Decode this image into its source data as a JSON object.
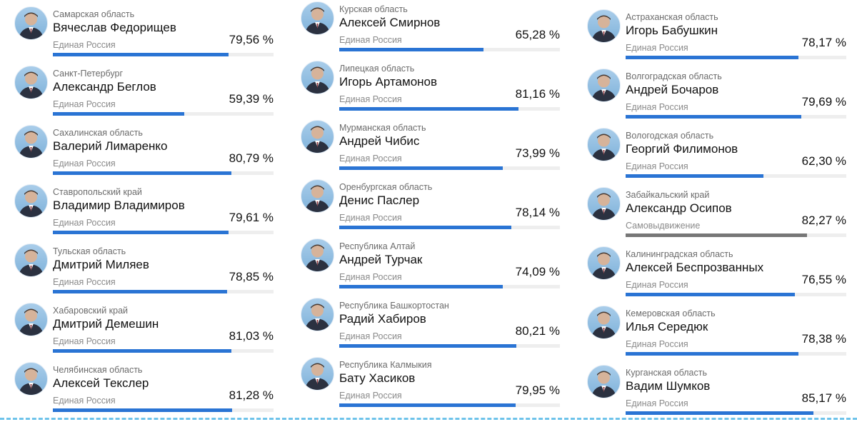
{
  "accent_color": "#2a74d4",
  "independent_color": "#777777",
  "columns": [
    {
      "cards": [
        {
          "region": "Самарская область",
          "name": "Вячеслав Федорищев",
          "party": "Единая Россия",
          "percent": "79,56 %",
          "share": 0.7956
        },
        {
          "region": "Санкт-Петербург",
          "name": "Александр Беглов",
          "party": "Единая Россия",
          "percent": "59,39 %",
          "share": 0.5939
        },
        {
          "region": "Сахалинская область",
          "name": "Валерий Лимаренко",
          "party": "Единая Россия",
          "percent": "80,79 %",
          "share": 0.8079
        },
        {
          "region": "Ставропольский край",
          "name": "Владимир Владимиров",
          "party": "Единая Россия",
          "percent": "79,61 %",
          "share": 0.7961
        },
        {
          "region": "Тульская область",
          "name": "Дмитрий Миляев",
          "party": "Единая Россия",
          "percent": "78,85 %",
          "share": 0.7885
        },
        {
          "region": "Хабаровский край",
          "name": "Дмитрий Демешин",
          "party": "Единая Россия",
          "percent": "81,03 %",
          "share": 0.8103
        },
        {
          "region": "Челябинская область",
          "name": "Алексей Текслер",
          "party": "Единая Россия",
          "percent": "81,28 %",
          "share": 0.8128
        }
      ]
    },
    {
      "cards": [
        {
          "region": "Курская область",
          "name": "Алексей Смирнов",
          "party": "Единая Россия",
          "percent": "65,28 %",
          "share": 0.6528
        },
        {
          "region": "Липецкая область",
          "name": "Игорь Артамонов",
          "party": "Единая Россия",
          "percent": "81,16 %",
          "share": 0.8116
        },
        {
          "region": "Мурманская область",
          "name": "Андрей Чибис",
          "party": "Единая Россия",
          "percent": "73,99 %",
          "share": 0.7399
        },
        {
          "region": "Оренбургская область",
          "name": "Денис Паслер",
          "party": "Единая Россия",
          "percent": "78,14 %",
          "share": 0.7814
        },
        {
          "region": "Республика Алтай",
          "name": "Андрей Турчак",
          "party": "Единая Россия",
          "percent": "74,09 %",
          "share": 0.7409
        },
        {
          "region": "Республика Башкортостан",
          "name": "Радий Хабиров",
          "party": "Единая Россия",
          "percent": "80,21 %",
          "share": 0.8021
        },
        {
          "region": "Республика Калмыкия",
          "name": "Бату Хасиков",
          "party": "Единая Россия",
          "percent": "79,95 %",
          "share": 0.7995
        }
      ]
    },
    {
      "cards": [
        {
          "region": "Астраханская область",
          "name": "Игорь Бабушкин",
          "party": "Единая Россия",
          "percent": "78,17 %",
          "share": 0.7817
        },
        {
          "region": "Волгоградская область",
          "name": "Андрей Бочаров",
          "party": "Единая Россия",
          "percent": "79,69 %",
          "share": 0.7969
        },
        {
          "region": "Вологодская область",
          "name": "Георгий Филимонов",
          "party": "Единая Россия",
          "percent": "62,30 %",
          "share": 0.623
        },
        {
          "region": "Забайкальский край",
          "name": "Александр Осипов",
          "party": "Самовыдвижение",
          "percent": "82,27 %",
          "share": 0.8227
        },
        {
          "region": "Калининградская область",
          "name": "Алексей Беспрозванных",
          "party": "Единая Россия",
          "percent": "76,55 %",
          "share": 0.7655
        },
        {
          "region": "Кемеровская область",
          "name": "Илья Середюк",
          "party": "Единая Россия",
          "percent": "78,38 %",
          "share": 0.7838
        },
        {
          "region": "Курганская область",
          "name": "Вадим Шумков",
          "party": "Единая Россия",
          "percent": "85,17 %",
          "share": 0.8517
        }
      ]
    }
  ]
}
